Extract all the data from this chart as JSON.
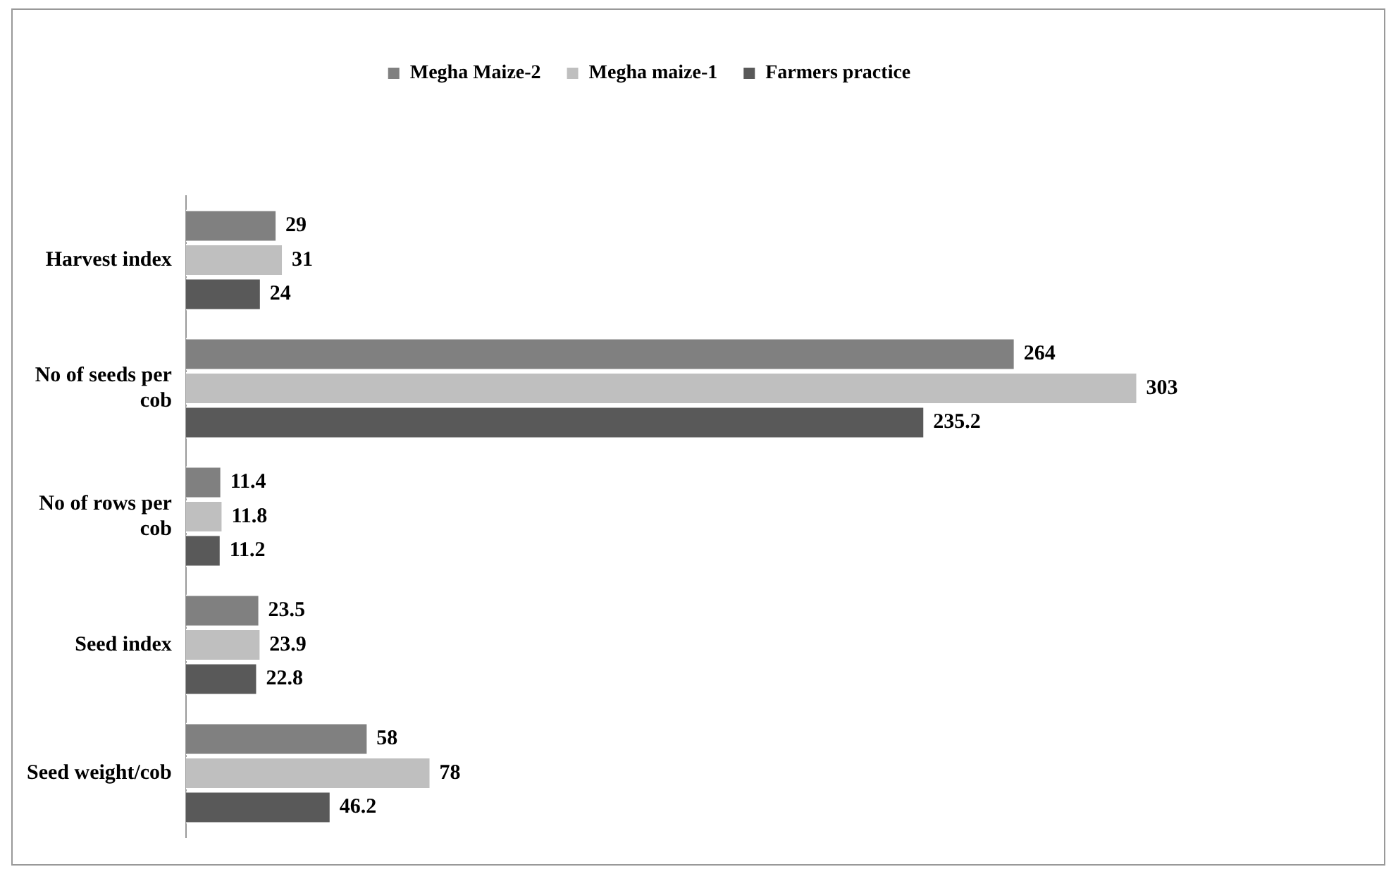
{
  "chart_data": {
    "type": "bar",
    "orientation": "horizontal",
    "categories": [
      "Harvest index",
      "No of seeds per cob",
      "No of rows per cob",
      "Seed index",
      "Seed weight/cob"
    ],
    "series": [
      {
        "name": "Megha Maize-2",
        "color": "#808080",
        "values": [
          29,
          264,
          11.4,
          23.5,
          58
        ]
      },
      {
        "name": "Megha maize-1",
        "color": "#bfbfbf",
        "values": [
          31,
          303,
          11.8,
          23.9,
          78
        ]
      },
      {
        "name": "Farmers practice",
        "color": "#595959",
        "values": [
          24,
          235.2,
          11.2,
          22.8,
          46.2
        ]
      }
    ],
    "data_labels": true,
    "legend": "top"
  }
}
